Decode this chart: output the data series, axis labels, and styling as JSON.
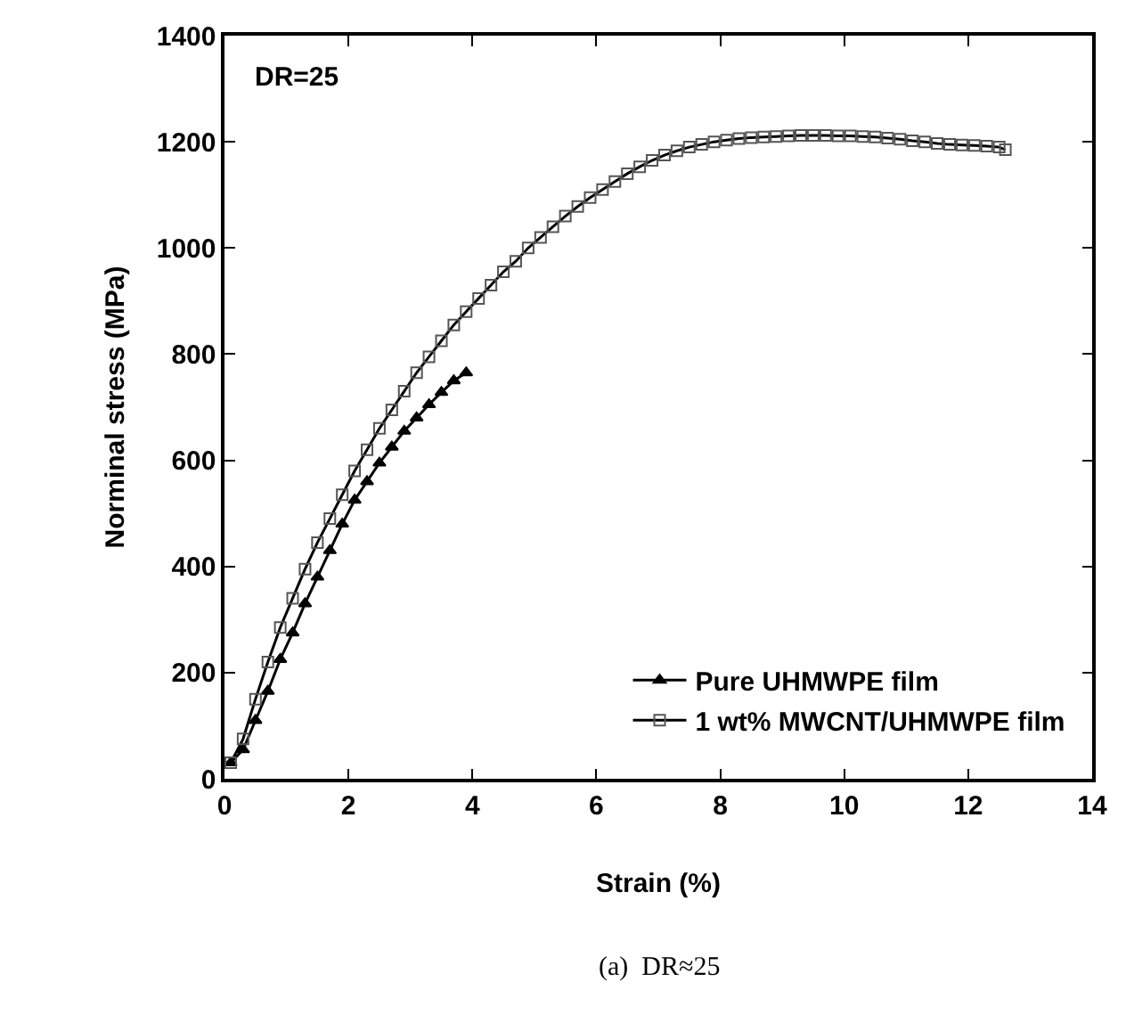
{
  "chart_data": {
    "type": "line",
    "xlabel": "Strain (%)",
    "ylabel": "Norminal stress (MPa)",
    "xlim": [
      0,
      14
    ],
    "xticks": [
      0,
      2,
      4,
      6,
      8,
      10,
      12,
      14
    ],
    "ylim": [
      0,
      1400
    ],
    "yticks": [
      0,
      200,
      400,
      600,
      800,
      1000,
      1200,
      1400
    ],
    "legend": "bottom right",
    "annotations": [
      "DR=25",
      "(a)  DR≈25"
    ],
    "series": [
      {
        "name": "Pure UHMWPE film",
        "color": "#000000",
        "marker": "triangle",
        "x": [
          0.1,
          0.3,
          0.5,
          0.7,
          0.9,
          1.1,
          1.3,
          1.5,
          1.7,
          1.9,
          2.1,
          2.3,
          2.5,
          2.7,
          2.9,
          3.1,
          3.3,
          3.5,
          3.7,
          3.9
        ],
        "values": [
          30,
          55,
          110,
          165,
          225,
          275,
          330,
          380,
          430,
          480,
          525,
          560,
          595,
          625,
          655,
          680,
          705,
          728,
          750,
          765
        ]
      },
      {
        "name": "1 wt% MWCNT/UHMWPE film",
        "color": "#000000",
        "marker": "square",
        "x": [
          0.1,
          0.3,
          0.5,
          0.7,
          0.9,
          1.1,
          1.3,
          1.5,
          1.7,
          1.9,
          2.1,
          2.3,
          2.5,
          2.7,
          2.9,
          3.1,
          3.3,
          3.5,
          3.7,
          3.9,
          4.1,
          4.3,
          4.5,
          4.7,
          4.9,
          5.1,
          5.3,
          5.5,
          5.7,
          5.9,
          6.1,
          6.3,
          6.5,
          6.7,
          6.9,
          7.1,
          7.3,
          7.5,
          7.7,
          7.9,
          8.1,
          8.3,
          8.5,
          8.7,
          8.9,
          9.1,
          9.3,
          9.5,
          9.7,
          9.9,
          10.1,
          10.3,
          10.5,
          10.7,
          10.9,
          11.1,
          11.3,
          11.5,
          11.7,
          11.9,
          12.1,
          12.3,
          12.5,
          12.6
        ],
        "values": [
          30,
          75,
          150,
          220,
          285,
          340,
          395,
          445,
          490,
          535,
          580,
          620,
          660,
          695,
          730,
          765,
          795,
          825,
          855,
          880,
          905,
          930,
          955,
          975,
          1000,
          1020,
          1040,
          1060,
          1078,
          1095,
          1110,
          1125,
          1140,
          1153,
          1165,
          1175,
          1183,
          1190,
          1195,
          1200,
          1203,
          1206,
          1208,
          1209,
          1210,
          1211,
          1212,
          1212,
          1212,
          1211,
          1211,
          1210,
          1209,
          1207,
          1205,
          1202,
          1200,
          1197,
          1195,
          1194,
          1193,
          1192,
          1190,
          1185
        ]
      }
    ]
  }
}
